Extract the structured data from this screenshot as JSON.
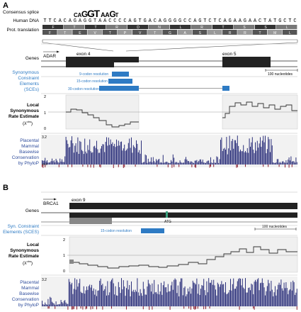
{
  "panelA": {
    "letter": "A",
    "consensus_label": "Consensus splice",
    "dna_label": "Human DNA",
    "prot_label": "Prot. translation",
    "dna_seq": "TTCACAGAGGTAACCCCAGTGACAGGGGCCAGTCTCAGAAGAACTATGCTC",
    "logo_letters": [
      "C",
      "A",
      "G",
      "G",
      "T",
      "A",
      "A",
      "G",
      "T"
    ],
    "frame1": [
      "F",
      "T",
      "T",
      "R",
      "D",
      "N",
      "L",
      "R",
      "T",
      "S",
      "S",
      "L"
    ],
    "frame2": [
      "F",
      "T",
      "E",
      "V",
      "T",
      "P",
      "V",
      "T",
      "G",
      "A",
      "S",
      "L",
      "R",
      "R",
      "T",
      "M",
      "L"
    ],
    "genes_label": "Genes",
    "gene_name": "ADAR",
    "exon4": "exon 4",
    "exon5": "exon 5",
    "scale_text": "100 nucleotides",
    "sce_label": [
      "Synonymous",
      "Constraint",
      "Elements",
      "(SCEs)"
    ],
    "sce_res": [
      "9-codon resolution",
      "15-codon resolution",
      "30-codon resolution"
    ],
    "rate_label": [
      "Local",
      "Synonymous",
      "Rate Estimate"
    ],
    "rate_ticks": [
      "2",
      "1",
      "0"
    ],
    "cons_label": [
      "Placental",
      "Mammal",
      "Basewise",
      "Conservation",
      "by PhyloP"
    ],
    "cons_ticks": [
      "3.2",
      "-0.3"
    ]
  },
  "panelB": {
    "letter": "B",
    "gene_name": "BRCA1",
    "exon9": "exon 9",
    "genes_label": "Genes",
    "atg": "ATG",
    "scale_text": "100 nucleotides",
    "sce_label": [
      "Syn. Constraint",
      "Elements (SCES)"
    ],
    "sce_res": "15-codon resolution",
    "rate_label": [
      "Local",
      "Synonymous",
      "Rate Estimate"
    ],
    "rate_ticks": [
      "2",
      "1",
      "0"
    ],
    "cons_label": [
      "Placental",
      "Mammal",
      "Basewise",
      "Conservation",
      "by PhyloP"
    ],
    "cons_ticks": [
      "3.2"
    ]
  },
  "colors": {
    "sce_blue": "#2e7bc4",
    "cons_bar": "#2b2f7a",
    "cons_neg": "#8b1a2b",
    "exon": "#222222",
    "track_bg": "#f2f2f2"
  }
}
